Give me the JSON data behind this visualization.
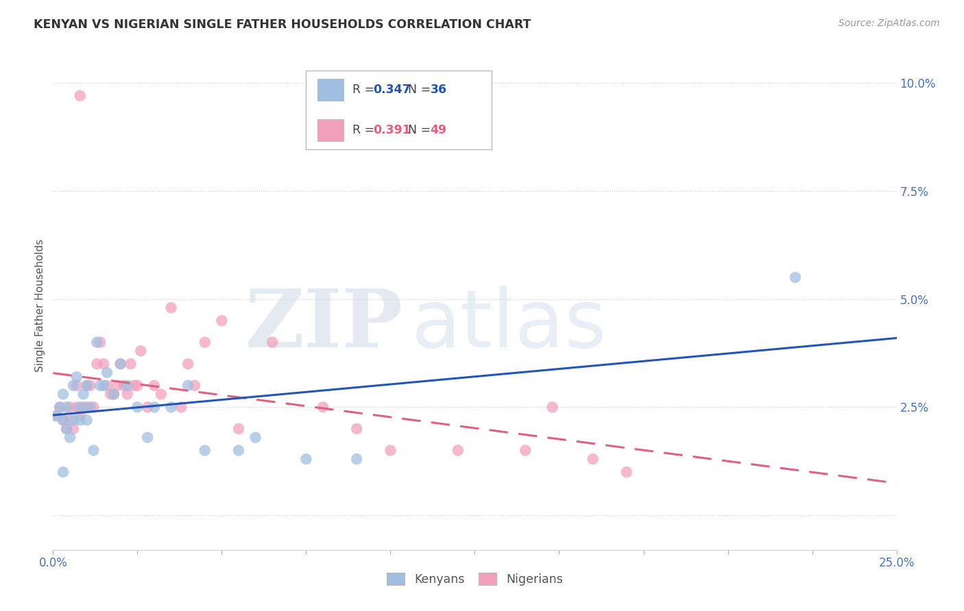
{
  "title": "KENYAN VS NIGERIAN SINGLE FATHER HOUSEHOLDS CORRELATION CHART",
  "source": "Source: ZipAtlas.com",
  "ylabel": "Single Father Households",
  "xlim": [
    0.0,
    0.25
  ],
  "ylim": [
    -0.008,
    0.105
  ],
  "background_color": "#ffffff",
  "kenyan_color": "#a0bfe0",
  "nigerian_color": "#f2a0bc",
  "kenyan_line_color": "#2255bb",
  "nigerian_line_color": "#e06080",
  "kenyan_R": 0.347,
  "kenyan_N": 36,
  "nigerian_R": 0.391,
  "nigerian_N": 49,
  "kenyan_x": [
    0.001,
    0.002,
    0.003,
    0.003,
    0.004,
    0.004,
    0.005,
    0.006,
    0.006,
    0.007,
    0.008,
    0.008,
    0.009,
    0.01,
    0.01,
    0.011,
    0.012,
    0.013,
    0.014,
    0.015,
    0.016,
    0.018,
    0.02,
    0.022,
    0.025,
    0.028,
    0.03,
    0.035,
    0.04,
    0.045,
    0.055,
    0.06,
    0.075,
    0.09,
    0.22,
    0.003
  ],
  "kenyan_y": [
    0.023,
    0.025,
    0.022,
    0.028,
    0.02,
    0.025,
    0.018,
    0.03,
    0.022,
    0.032,
    0.025,
    0.022,
    0.028,
    0.03,
    0.022,
    0.025,
    0.015,
    0.04,
    0.03,
    0.03,
    0.033,
    0.028,
    0.035,
    0.03,
    0.025,
    0.018,
    0.025,
    0.025,
    0.03,
    0.015,
    0.015,
    0.018,
    0.013,
    0.013,
    0.055,
    0.01
  ],
  "nigerian_x": [
    0.001,
    0.002,
    0.003,
    0.004,
    0.005,
    0.005,
    0.006,
    0.007,
    0.007,
    0.008,
    0.009,
    0.01,
    0.01,
    0.011,
    0.012,
    0.013,
    0.014,
    0.015,
    0.016,
    0.017,
    0.018,
    0.019,
    0.02,
    0.021,
    0.022,
    0.023,
    0.024,
    0.025,
    0.026,
    0.028,
    0.03,
    0.032,
    0.035,
    0.038,
    0.04,
    0.042,
    0.045,
    0.05,
    0.055,
    0.065,
    0.08,
    0.09,
    0.1,
    0.12,
    0.14,
    0.16,
    0.17,
    0.008,
    0.148
  ],
  "nigerian_y": [
    0.023,
    0.025,
    0.022,
    0.02,
    0.022,
    0.025,
    0.02,
    0.03,
    0.025,
    0.023,
    0.025,
    0.025,
    0.03,
    0.03,
    0.025,
    0.035,
    0.04,
    0.035,
    0.03,
    0.028,
    0.028,
    0.03,
    0.035,
    0.03,
    0.028,
    0.035,
    0.03,
    0.03,
    0.038,
    0.025,
    0.03,
    0.028,
    0.048,
    0.025,
    0.035,
    0.03,
    0.04,
    0.045,
    0.02,
    0.04,
    0.025,
    0.02,
    0.015,
    0.015,
    0.015,
    0.013,
    0.01,
    0.097,
    0.025
  ]
}
